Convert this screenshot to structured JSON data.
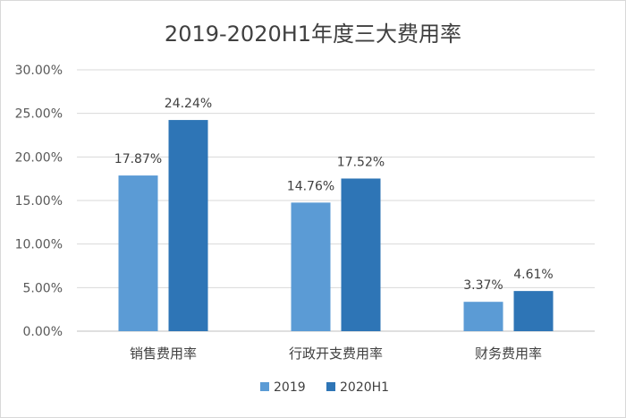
{
  "chart_data": {
    "type": "bar",
    "title": "2019-2020H1年度三大费用率",
    "categories": [
      "销售费用率",
      "行政开支费用率",
      "财务费用率"
    ],
    "series": [
      {
        "name": "2019",
        "values": [
          17.87,
          14.76,
          3.37
        ],
        "labels": [
          "17.87%",
          "14.76%",
          "3.37%"
        ],
        "color": "#5b9bd5"
      },
      {
        "name": "2020H1",
        "values": [
          24.24,
          17.52,
          4.61
        ],
        "labels": [
          "24.24%",
          "17.52%",
          "4.61%"
        ],
        "color": "#2e75b6"
      }
    ],
    "ylim": [
      0,
      30
    ],
    "yticks": [
      "0.00%",
      "5.00%",
      "10.00%",
      "15.00%",
      "20.00%",
      "25.00%",
      "30.00%"
    ],
    "grid": true,
    "legend": "bottom"
  }
}
